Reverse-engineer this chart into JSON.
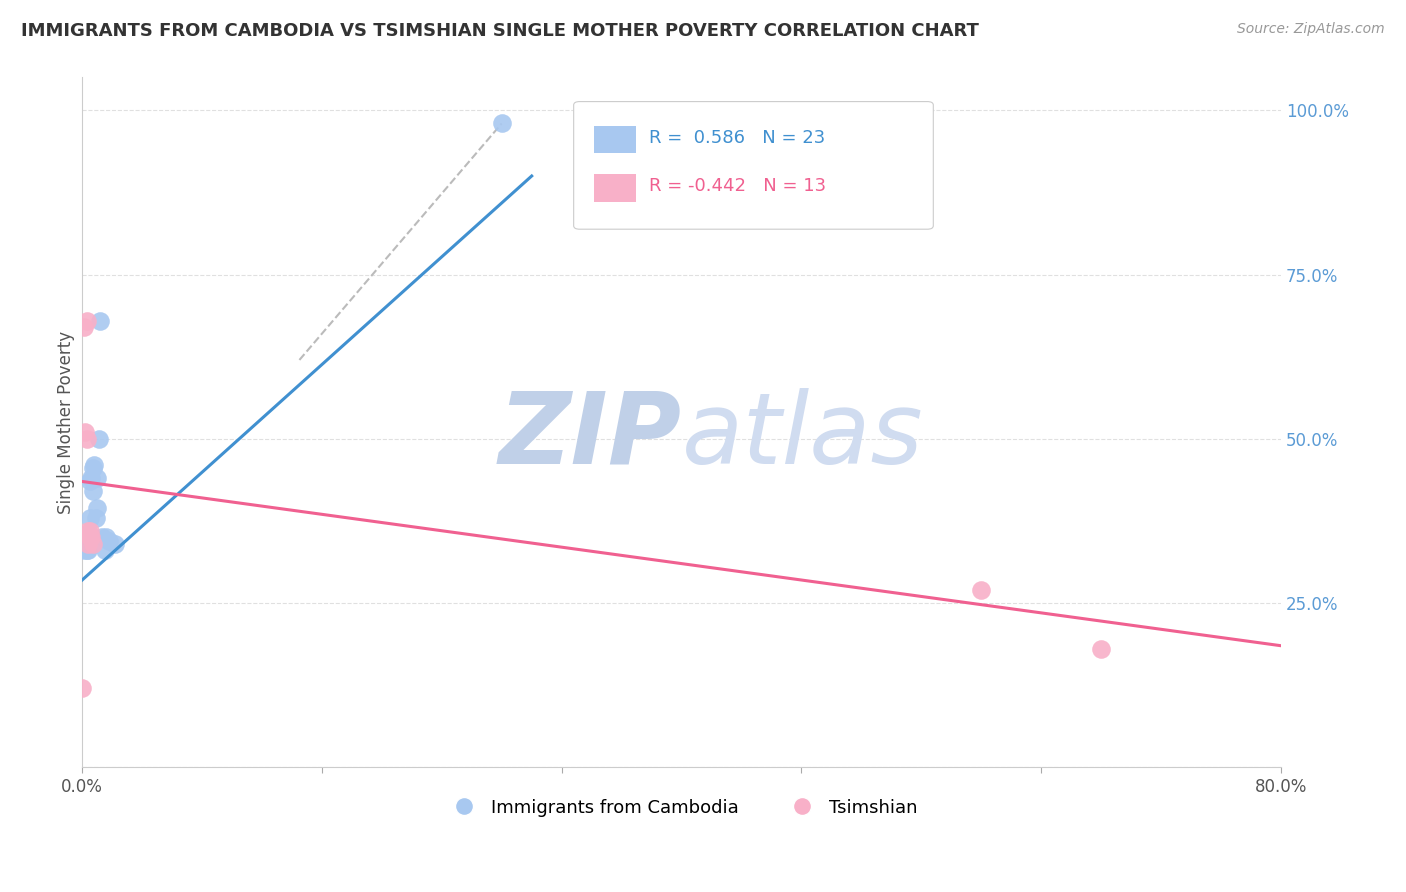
{
  "title": "IMMIGRANTS FROM CAMBODIA VS TSIMSHIAN SINGLE MOTHER POVERTY CORRELATION CHART",
  "source": "Source: ZipAtlas.com",
  "ylabel": "Single Mother Poverty",
  "watermark_zip": "ZIP",
  "watermark_atlas": "atlas",
  "legend_blue_r": "0.586",
  "legend_blue_n": "23",
  "legend_pink_r": "-0.442",
  "legend_pink_n": "13",
  "legend_label_blue": "Immigrants from Cambodia",
  "legend_label_pink": "Tsimshian",
  "blue_x": [
    0.001,
    0.002,
    0.003,
    0.003,
    0.004,
    0.004,
    0.005,
    0.005,
    0.006,
    0.007,
    0.007,
    0.008,
    0.009,
    0.01,
    0.01,
    0.011,
    0.012,
    0.013,
    0.015,
    0.016,
    0.018,
    0.022,
    0.28
  ],
  "blue_y": [
    0.33,
    0.345,
    0.33,
    0.355,
    0.33,
    0.34,
    0.38,
    0.435,
    0.44,
    0.455,
    0.42,
    0.46,
    0.38,
    0.395,
    0.44,
    0.5,
    0.68,
    0.35,
    0.33,
    0.35,
    0.345,
    0.34,
    0.98
  ],
  "pink_x": [
    0.0,
    0.001,
    0.002,
    0.003,
    0.003,
    0.004,
    0.004,
    0.005,
    0.005,
    0.006,
    0.007,
    0.6,
    0.68
  ],
  "pink_y": [
    0.12,
    0.67,
    0.51,
    0.68,
    0.5,
    0.34,
    0.36,
    0.35,
    0.36,
    0.35,
    0.34,
    0.27,
    0.18
  ],
  "blue_line_x": [
    0.0,
    0.3
  ],
  "blue_line_y": [
    0.285,
    0.9
  ],
  "pink_line_x": [
    0.0,
    0.8
  ],
  "pink_line_y": [
    0.435,
    0.185
  ],
  "dashed_line_x": [
    0.145,
    0.28
  ],
  "dashed_line_y": [
    0.62,
    0.98
  ],
  "xlim": [
    0.0,
    0.8
  ],
  "ylim": [
    0.0,
    1.05
  ],
  "blue_color": "#A8C8F0",
  "pink_color": "#F8B0C8",
  "blue_line_color": "#4090D0",
  "pink_line_color": "#F06090",
  "dashed_line_color": "#BBBBBB",
  "grid_color": "#E0E0E0",
  "title_color": "#333333",
  "source_color": "#999999",
  "right_tick_color": "#5B9BD5",
  "watermark_color_zip": "#C0D0E8",
  "watermark_color_atlas": "#D0DCF0"
}
